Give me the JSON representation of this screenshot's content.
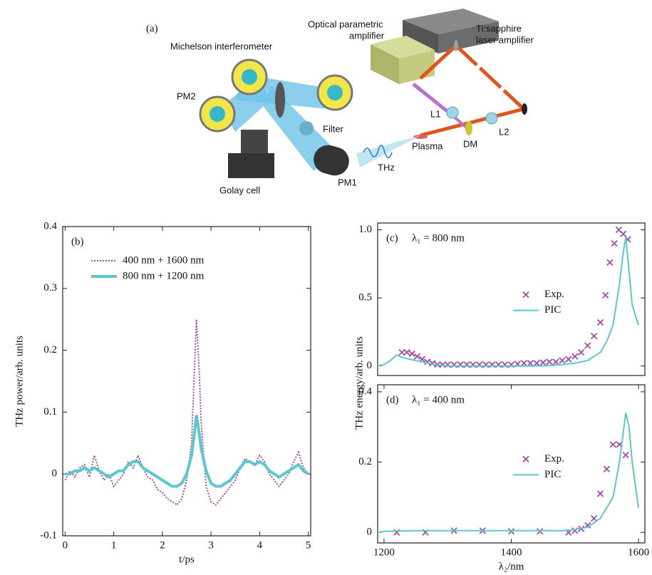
{
  "diagram": {
    "panel_label": "(a)",
    "labels": [
      {
        "lines": [
          "Optical parametric",
          "amplifier"
        ]
      },
      {
        "lines": [
          "Ti:sapphire",
          "laser amplifier"
        ]
      },
      {
        "lines": [
          "Michelson interferometer"
        ]
      },
      {
        "lines": [
          "PM2"
        ]
      },
      {
        "lines": [
          "Filter"
        ]
      },
      {
        "lines": [
          "L1"
        ]
      },
      {
        "lines": [
          "DM"
        ]
      },
      {
        "lines": [
          "L2"
        ]
      },
      {
        "lines": [
          "Plasma"
        ]
      },
      {
        "lines": [
          "THz"
        ]
      },
      {
        "lines": [
          "PM1"
        ]
      },
      {
        "lines": [
          "Golay cell"
        ]
      }
    ]
  },
  "chart_data": [
    {
      "type": "line",
      "panel_label": "(b)",
      "xlabel": "t/ps",
      "ylabel": "THz power/arb. units",
      "xlim": [
        -0.05,
        5.05
      ],
      "ylim": [
        -0.1,
        0.4
      ],
      "xticks": [
        0,
        1,
        2,
        3,
        4,
        5
      ],
      "yticks": [
        -0.1,
        0,
        0.1,
        0.2,
        0.3,
        0.4
      ],
      "legend": "upper left",
      "x": [
        0,
        0.1,
        0.2,
        0.3,
        0.4,
        0.5,
        0.6,
        0.7,
        0.8,
        0.9,
        1.0,
        1.1,
        1.2,
        1.3,
        1.4,
        1.5,
        1.6,
        1.7,
        1.8,
        1.9,
        2.0,
        2.1,
        2.2,
        2.3,
        2.4,
        2.5,
        2.6,
        2.65,
        2.7,
        2.75,
        2.8,
        2.9,
        3.0,
        3.1,
        3.2,
        3.3,
        3.4,
        3.5,
        3.6,
        3.7,
        3.8,
        3.9,
        4.0,
        4.1,
        4.2,
        4.3,
        4.4,
        4.5,
        4.6,
        4.7,
        4.8,
        4.9,
        5.0
      ],
      "series": [
        {
          "name": "400 nm + 1600 nm",
          "color": "#a64ca6",
          "linestyle": "dotted",
          "values": [
            -0.01,
            0.005,
            -0.005,
            0.01,
            0.015,
            -0.005,
            0.03,
            0.005,
            -0.01,
            0,
            -0.02,
            -0.01,
            0,
            0.02,
            0.01,
            0.03,
            0.01,
            -0.005,
            -0.01,
            -0.025,
            -0.03,
            -0.04,
            -0.045,
            -0.05,
            -0.04,
            -0.01,
            0.05,
            0.15,
            0.25,
            0.18,
            0.08,
            -0.02,
            -0.045,
            -0.05,
            -0.04,
            -0.03,
            -0.02,
            -0.01,
            0.01,
            0.025,
            0.02,
            0.015,
            0.03,
            0.02,
            0,
            -0.01,
            -0.02,
            -0.01,
            0,
            0.02,
            0.035,
            0.01,
            0
          ]
        },
        {
          "name": "800 nm + 1200 nm",
          "color": "#5bc8d0",
          "linestyle": "solid",
          "values": [
            0,
            0,
            0.005,
            0.005,
            0.01,
            0.005,
            0.01,
            0.005,
            0,
            -0.005,
            0,
            0.005,
            0.005,
            0.015,
            0.02,
            0.02,
            0.01,
            0.005,
            0,
            -0.005,
            -0.01,
            -0.015,
            -0.02,
            -0.02,
            -0.015,
            0,
            0.03,
            0.06,
            0.095,
            0.07,
            0.04,
            0.005,
            -0.015,
            -0.02,
            -0.02,
            -0.015,
            -0.01,
            0,
            0.01,
            0.02,
            0.02,
            0.015,
            0.02,
            0.015,
            0.005,
            0,
            -0.005,
            0,
            0.005,
            0.01,
            0.015,
            0.005,
            0
          ]
        }
      ]
    },
    {
      "type": "line",
      "panel_label": "(c)",
      "annotation": "λ₁ = 800 nm",
      "ylabel": "THz energy/arb. units",
      "xlim": [
        1190,
        1610
      ],
      "ylim": [
        -0.07,
        1.05
      ],
      "yticks": [
        0,
        0.5,
        {
          "value": 1,
          "label": "1.0"
        }
      ],
      "legend": "right",
      "series": [
        {
          "name": "Exp.",
          "color": "#a64ca6",
          "marker": "x",
          "x": [
            1228,
            1236,
            1244,
            1252,
            1260,
            1268,
            1276,
            1284,
            1292,
            1300,
            1310,
            1320,
            1330,
            1340,
            1350,
            1360,
            1370,
            1380,
            1390,
            1400,
            1410,
            1420,
            1430,
            1440,
            1450,
            1460,
            1470,
            1480,
            1490,
            1500,
            1510,
            1520,
            1530,
            1540,
            1548,
            1555,
            1562,
            1569,
            1576,
            1583
          ],
          "values": [
            0.1,
            0.1,
            0.09,
            0.07,
            0.05,
            0.03,
            0.02,
            0.01,
            0.01,
            0.01,
            0.01,
            0.01,
            0.01,
            0.01,
            0.01,
            0.01,
            0.01,
            0.01,
            0.01,
            0.01,
            0.015,
            0.02,
            0.02,
            0.02,
            0.025,
            0.03,
            0.03,
            0.04,
            0.05,
            0.07,
            0.1,
            0.15,
            0.22,
            0.32,
            0.52,
            0.76,
            0.9,
            1.0,
            0.97,
            0.93
          ]
        },
        {
          "name": "PIC",
          "color": "#5bc8d0",
          "x": [
            1190,
            1200,
            1210,
            1220,
            1230,
            1240,
            1260,
            1280,
            1300,
            1350,
            1400,
            1450,
            1480,
            1500,
            1520,
            1540,
            1550,
            1560,
            1570,
            1575,
            1580,
            1585,
            1590,
            1600
          ],
          "values": [
            0,
            0.01,
            0.04,
            0.08,
            0.06,
            0.05,
            0.03,
            0.01,
            0,
            0,
            0,
            0,
            0.01,
            0.02,
            0.04,
            0.1,
            0.18,
            0.3,
            0.6,
            0.8,
            0.95,
            0.7,
            0.45,
            0.3
          ]
        }
      ]
    },
    {
      "type": "line",
      "panel_label": "(d)",
      "annotation": "λ₁ = 400 nm",
      "xlabel": "λ₂/nm",
      "xlim": [
        1190,
        1610
      ],
      "ylim": [
        -0.03,
        0.42
      ],
      "xticks": [
        1200,
        1400,
        1600
      ],
      "yticks": [
        0,
        0.2,
        0.4
      ],
      "legend": "right",
      "series": [
        {
          "name": "Exp.",
          "color": "#a64ca6",
          "marker": "x",
          "x": [
            1220,
            1265,
            1310,
            1355,
            1400,
            1445,
            1490,
            1500,
            1510,
            1520,
            1530,
            1540,
            1550,
            1560,
            1570,
            1580
          ],
          "values": [
            0,
            0,
            0.005,
            0.005,
            0.003,
            0.003,
            0,
            0.005,
            0.01,
            0.02,
            0.04,
            0.11,
            0.18,
            0.25,
            0.25,
            0.22
          ]
        },
        {
          "name": "PIC",
          "color": "#5bc8d0",
          "x": [
            1190,
            1200,
            1250,
            1300,
            1400,
            1480,
            1500,
            1520,
            1540,
            1560,
            1570,
            1580,
            1585,
            1590,
            1600
          ],
          "values": [
            0,
            0.003,
            0.005,
            0.005,
            0.005,
            0.005,
            0.008,
            0.015,
            0.04,
            0.1,
            0.2,
            0.34,
            0.3,
            0.2,
            0.07
          ]
        }
      ]
    }
  ]
}
